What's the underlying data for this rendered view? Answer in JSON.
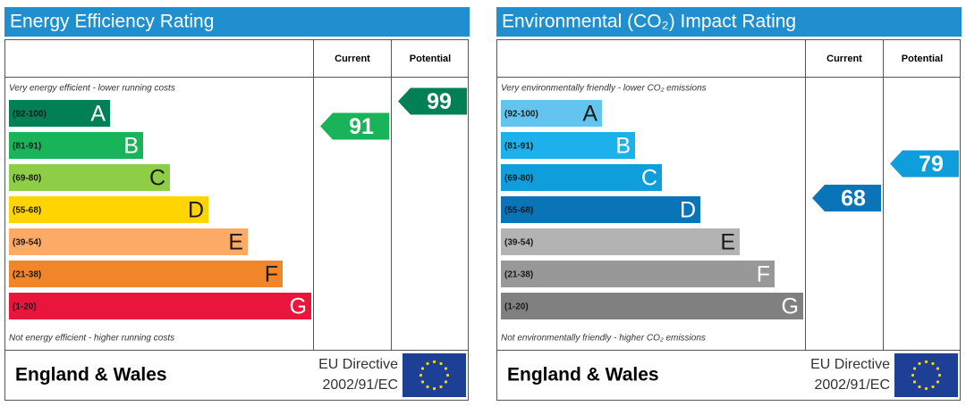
{
  "panels": [
    {
      "title": "Energy Efficiency Rating",
      "column_headers": [
        "Current",
        "Potential"
      ],
      "top_note": "Very energy efficient - lower running costs",
      "bottom_note": "Not energy efficient - higher running costs",
      "bands": [
        {
          "range": "(92-100)",
          "letter": "A",
          "color": "#008054"
        },
        {
          "range": "(81-91)",
          "letter": "B",
          "color": "#19b459"
        },
        {
          "range": "(69-80)",
          "letter": "C",
          "color": "#8dce46"
        },
        {
          "range": "(55-68)",
          "letter": "D",
          "color": "#ffd500"
        },
        {
          "range": "(39-54)",
          "letter": "E",
          "color": "#fcaa65"
        },
        {
          "range": "(21-38)",
          "letter": "F",
          "color": "#f0852a"
        },
        {
          "range": "(1-20)",
          "letter": "G",
          "color": "#e9153b"
        }
      ],
      "current": 91,
      "potential": 99,
      "footer": {
        "region": "England & Wales",
        "directive": [
          "EU Directive",
          "2002/91/EC"
        ]
      }
    },
    {
      "title": "Environmental (CO₂) Impact Rating",
      "column_headers": [
        "Current",
        "Potential"
      ],
      "top_note": "Very environmentally friendly - lower CO₂ emissions",
      "bottom_note": "Not environmentally friendly - higher CO₂ emissions",
      "bands": [
        {
          "range": "(92-100)",
          "letter": "A",
          "color": "#63c5ef"
        },
        {
          "range": "(81-91)",
          "letter": "B",
          "color": "#1cb1ea"
        },
        {
          "range": "(69-80)",
          "letter": "C",
          "color": "#0f9edc"
        },
        {
          "range": "(55-68)",
          "letter": "D",
          "color": "#0a74b8"
        },
        {
          "range": "(39-54)",
          "letter": "E",
          "color": "#b3b3b3"
        },
        {
          "range": "(21-38)",
          "letter": "F",
          "color": "#989898"
        },
        {
          "range": "(1-20)",
          "letter": "G",
          "color": "#808080"
        }
      ],
      "current": 68,
      "potential": 79,
      "footer": {
        "region": "England & Wales",
        "directive": [
          "EU Directive",
          "2002/91/EC"
        ]
      }
    }
  ]
}
